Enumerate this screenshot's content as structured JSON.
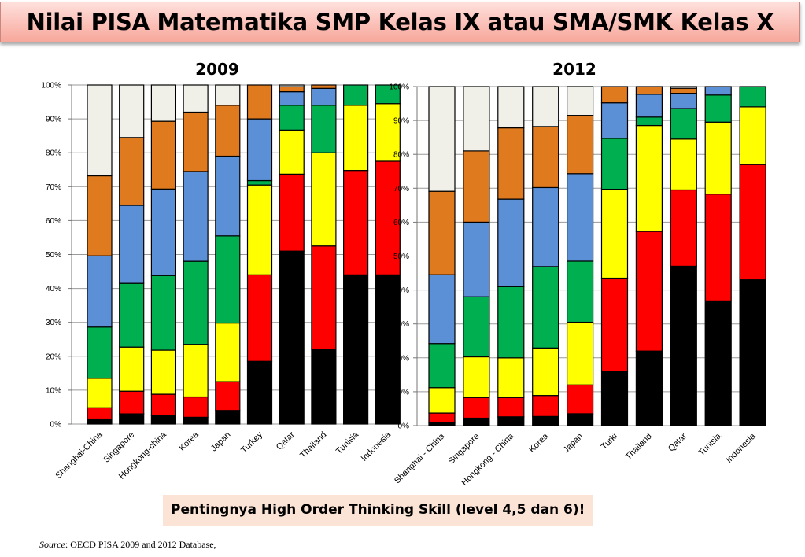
{
  "title": "Nilai PISA Matematika SMP Kelas IX atau SMA/SMK Kelas X",
  "callout": "Pentingnya High Order Thinking Skill (level 4,5 dan 6)!",
  "source": {
    "label": "Source",
    "text": ": OECD PISA 2009  and 2012 Database,"
  },
  "colors": [
    "#000000",
    "#ff0000",
    "#ffff00",
    "#00b050",
    "#5b8fd6",
    "#e07a1f",
    "#f0efe8"
  ],
  "chart_data": [
    {
      "type": "bar",
      "stacked": true,
      "title": "2009",
      "ylim": [
        0,
        100
      ],
      "yticks": [
        "0%",
        "10%",
        "20%",
        "30%",
        "40%",
        "50%",
        "60%",
        "70%",
        "80%",
        "90%",
        "100%"
      ],
      "categories": [
        "Shanghai-China",
        "Singapore",
        "Hongkong-china",
        "Korea",
        "Japan",
        "Turkey",
        "Qatar",
        "Thailand",
        "Tunisia",
        "Indonesia"
      ],
      "series": [
        {
          "values": [
            1.5,
            3.0,
            2.5,
            2.0,
            4.0,
            18.5,
            51.0,
            22.0,
            44.0,
            44.0
          ]
        },
        {
          "values": [
            3.3,
            6.7,
            6.3,
            6.0,
            8.5,
            25.5,
            22.7,
            30.5,
            30.8,
            33.5
          ]
        },
        {
          "values": [
            8.7,
            13.0,
            13.0,
            15.5,
            17.3,
            26.5,
            13.0,
            27.5,
            19.2,
            17.0
          ]
        },
        {
          "values": [
            15.1,
            18.8,
            22.0,
            24.5,
            25.7,
            1.3,
            7.3,
            14.0,
            6.0,
            5.5
          ]
        },
        {
          "values": [
            21.0,
            23.0,
            25.5,
            26.5,
            23.5,
            18.2,
            4.0,
            5.0,
            0,
            0
          ]
        },
        {
          "values": [
            23.6,
            20.0,
            20.0,
            17.5,
            15.0,
            10.0,
            1.5,
            1.0,
            0,
            0
          ]
        },
        {
          "values": [
            26.8,
            15.5,
            10.7,
            8.0,
            6.0,
            0,
            0.5,
            0,
            0,
            0
          ]
        }
      ]
    },
    {
      "type": "bar",
      "stacked": true,
      "title": "2012",
      "ylim": [
        0,
        100
      ],
      "yticks": [
        "0%",
        "10%",
        "20%",
        "30%",
        "40%",
        "50%",
        "60%",
        "70%",
        "80%",
        "90%",
        "100%"
      ],
      "categories": [
        "Shanghai - China",
        "Singapore",
        "Hongkong - China",
        "Korea",
        "Japan",
        "Turki",
        "Thailand",
        "Qatar",
        "Tunisia",
        "Indonesia"
      ],
      "series": [
        {
          "values": [
            0.8,
            2.2,
            2.6,
            2.7,
            3.5,
            16.0,
            22.0,
            47.0,
            36.8,
            43.0
          ]
        },
        {
          "values": [
            2.9,
            6.1,
            5.7,
            6.2,
            8.5,
            27.5,
            35.3,
            22.5,
            31.5,
            34.0
          ]
        },
        {
          "values": [
            7.5,
            12.0,
            11.7,
            14.0,
            18.5,
            26.2,
            31.2,
            15.0,
            21.2,
            17.0
          ]
        },
        {
          "values": [
            13.0,
            17.7,
            21.0,
            24.0,
            18.0,
            15.0,
            2.5,
            9.0,
            8.0,
            6.0
          ]
        },
        {
          "values": [
            20.3,
            22.0,
            25.8,
            23.3,
            25.8,
            10.5,
            6.7,
            4.5,
            2.5,
            0
          ]
        },
        {
          "values": [
            24.6,
            21.0,
            21.0,
            18.0,
            17.2,
            4.8,
            2.3,
            1.5,
            0,
            0
          ]
        },
        {
          "values": [
            30.9,
            19.0,
            12.2,
            11.8,
            8.5,
            0,
            0,
            0.5,
            0,
            0
          ]
        }
      ]
    }
  ]
}
